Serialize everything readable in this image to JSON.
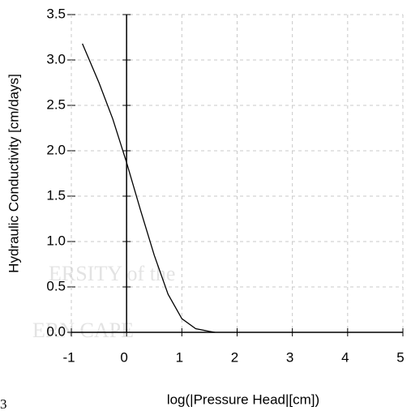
{
  "chart_data": {
    "type": "line",
    "xlabel": "log(|Pressure Head|[cm])",
    "ylabel": "Hydraulic Conductivity [cm/days]",
    "x": [
      -0.8,
      -0.5,
      -0.25,
      0,
      0.25,
      0.5,
      0.75,
      1.0,
      1.25,
      1.5,
      1.6
    ],
    "series": [
      {
        "color": "#000000",
        "values": [
          3.18,
          2.75,
          2.35,
          1.87,
          1.35,
          0.85,
          0.42,
          0.15,
          0.04,
          0.01,
          0
        ]
      }
    ],
    "xlim": [
      -1,
      5
    ],
    "xticks": [
      -1,
      0,
      1,
      2,
      3,
      4,
      5
    ],
    "ylim": [
      0,
      3.5
    ],
    "yticks": [
      {
        "value": 0,
        "label": "0.0"
      },
      {
        "value": 0.5,
        "label": "0.5"
      },
      {
        "value": 1,
        "label": "1.0"
      },
      {
        "value": 1.5,
        "label": "1.5"
      },
      {
        "value": 2,
        "label": "2.0"
      },
      {
        "value": 2.5,
        "label": "2.5"
      },
      {
        "value": 3,
        "label": "3.0"
      },
      {
        "value": 3.5,
        "label": "3.5"
      }
    ],
    "grid": true,
    "annotations": [
      "ERSITY of the",
      "ERN CAPE",
      "3"
    ]
  }
}
